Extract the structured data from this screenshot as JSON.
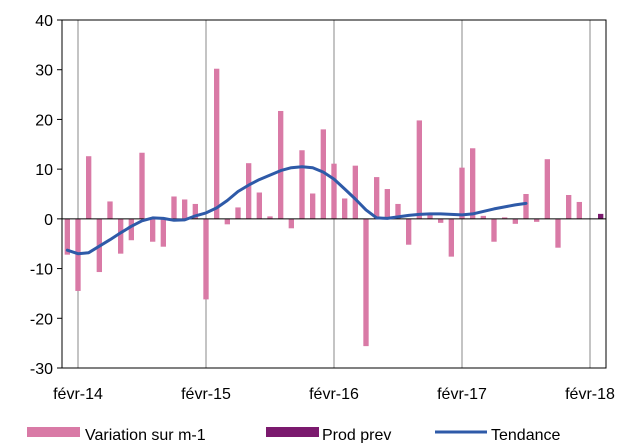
{
  "chart_data": {
    "type": "bar",
    "title": "",
    "xlabel": "",
    "ylabel": "",
    "ylim": [
      -30,
      40
    ],
    "y_ticks": [
      "40",
      "30",
      "20",
      "10",
      "0",
      "-10",
      "-20",
      "-30"
    ],
    "x_tick_labels": [
      "févr-14",
      "févr-15",
      "févr-16",
      "févr-17",
      "févr-18"
    ],
    "grid": "vertical lines at each février",
    "legend_position": "bottom",
    "months": [
      "janv-14",
      "févr-14",
      "mars-14",
      "avr-14",
      "mai-14",
      "juin-14",
      "juil-14",
      "août-14",
      "sept-14",
      "oct-14",
      "nov-14",
      "déc-14",
      "janv-15",
      "févr-15",
      "mars-15",
      "avr-15",
      "mai-15",
      "juin-15",
      "juil-15",
      "août-15",
      "sept-15",
      "oct-15",
      "nov-15",
      "déc-15",
      "janv-16",
      "févr-16",
      "mars-16",
      "avr-16",
      "mai-16",
      "juin-16",
      "juil-16",
      "août-16",
      "sept-16",
      "oct-16",
      "nov-16",
      "déc-16",
      "janv-17",
      "févr-17",
      "mars-17",
      "avr-17",
      "mai-17",
      "juin-17",
      "juil-17",
      "août-17",
      "sept-17",
      "oct-17",
      "nov-17",
      "déc-17",
      "janv-18",
      "févr-18",
      "mars-18"
    ],
    "series": [
      {
        "name": "Variation sur m-1",
        "kind": "bar",
        "color": "#d97aa6",
        "values": [
          -7.2,
          -14.5,
          12.6,
          -10.7,
          3.5,
          -7.0,
          -4.3,
          13.3,
          -4.6,
          -5.6,
          4.5,
          3.9,
          3.0,
          -16.2,
          30.2,
          -1.1,
          2.3,
          11.2,
          5.3,
          0.5,
          21.7,
          -1.9,
          13.8,
          5.1,
          18.0,
          11.1,
          4.1,
          10.7,
          -25.6,
          8.4,
          6.0,
          3.0,
          -5.2,
          19.8,
          0.8,
          -0.8,
          -7.6,
          10.3,
          14.2,
          0.6,
          -4.6,
          0.3,
          -1.0,
          5.0,
          -0.6,
          12.0,
          -5.8,
          4.8,
          3.4,
          null,
          null
        ]
      },
      {
        "name": "Prod prev",
        "kind": "bar",
        "color": "#7b1a6e",
        "values": [
          null,
          null,
          null,
          null,
          null,
          null,
          null,
          null,
          null,
          null,
          null,
          null,
          null,
          null,
          null,
          null,
          null,
          null,
          null,
          null,
          null,
          null,
          null,
          null,
          null,
          null,
          null,
          null,
          null,
          null,
          null,
          null,
          null,
          null,
          null,
          null,
          null,
          null,
          null,
          null,
          null,
          null,
          null,
          null,
          null,
          null,
          null,
          null,
          null,
          null,
          1.0
        ]
      },
      {
        "name": "Tendance",
        "kind": "line",
        "color": "#2e5aa8",
        "values": [
          -6.3,
          -7.0,
          -6.8,
          -5.5,
          -4.2,
          -2.8,
          -1.5,
          -0.4,
          0.2,
          0.1,
          -0.3,
          -0.2,
          0.6,
          1.2,
          2.2,
          3.7,
          5.5,
          6.8,
          7.9,
          8.8,
          9.7,
          10.3,
          10.5,
          10.3,
          9.4,
          8.0,
          6.0,
          4.0,
          1.8,
          0.2,
          0.1,
          0.4,
          0.7,
          0.9,
          1.0,
          1.0,
          0.9,
          0.8,
          1.0,
          1.5,
          2.0,
          2.4,
          2.8,
          3.1,
          null,
          null,
          null,
          null,
          null,
          null,
          null
        ]
      }
    ]
  }
}
